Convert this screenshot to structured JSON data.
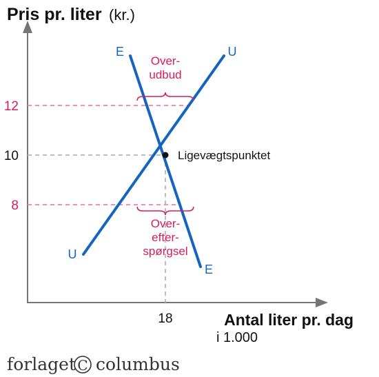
{
  "chart_data": {
    "type": "line",
    "ylabel_bold": "Pris pr. liter",
    "ylabel_unit": "(kr.)",
    "xlabel_bold": "Antal liter pr. dag",
    "xlabel_sub": "i 1.000",
    "y_ticks": [
      {
        "value": 12,
        "label": "12",
        "highlight": true
      },
      {
        "value": 10,
        "label": "10",
        "highlight": false
      },
      {
        "value": 8,
        "label": "8",
        "highlight": true
      }
    ],
    "x_ticks": [
      {
        "value": 18,
        "label": "18"
      }
    ],
    "series": [
      {
        "name": "U",
        "start_label": "U",
        "end_label": "U",
        "points": [
          [
            14.5,
            6
          ],
          [
            20.5,
            14
          ]
        ]
      },
      {
        "name": "E",
        "start_label": "E",
        "end_label": "E",
        "points": [
          [
            16.5,
            14
          ],
          [
            19.5,
            5.5
          ]
        ]
      }
    ],
    "equilibrium": {
      "x": 18,
      "y": 10,
      "label": "Ligevægtspunktet"
    },
    "annotations": [
      {
        "lines": [
          "Over-",
          "udbud"
        ],
        "at_price": 12,
        "x_from": 16.8,
        "x_to": 19.2
      },
      {
        "lines": [
          "Over-",
          "efter-",
          "spørgsel"
        ],
        "at_price": 8,
        "x_from": 16.8,
        "x_to": 19.2
      }
    ],
    "colors": {
      "curve": "#1565c0",
      "highlight": "#d81b60",
      "highlight_guide": "#f48fb1",
      "guide": "#bdbdbd",
      "axis": "#757575"
    },
    "xlim": [
      11.5,
      24
    ],
    "ylim": [
      4,
      16
    ]
  },
  "brand": {
    "left": "forlaget",
    "mark": "C",
    "right": "columbus"
  }
}
